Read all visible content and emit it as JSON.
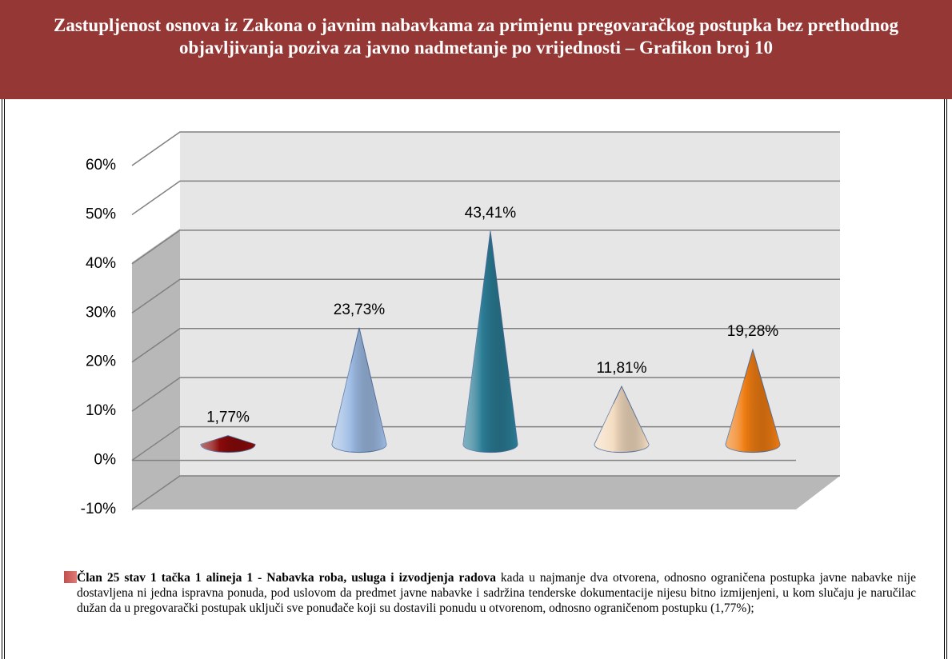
{
  "header": {
    "title": "Zastupljenost osnova iz Zakona o javnim nabavkama za primjenu pregovaračkog postupka bez prethodnog objavljivanja poziva za javno nadmetanje po vrijednosti – Grafikon broj 10"
  },
  "chart_data": {
    "type": "cone",
    "values": [
      1.77,
      23.73,
      43.41,
      11.81,
      19.28
    ],
    "value_labels": [
      "1,77%",
      "23,73%",
      "43,41%",
      "11,81%",
      "19,28%"
    ],
    "colors": [
      "#8b0a0a",
      "#9dbbe3",
      "#2b7d96",
      "#f4dcc0",
      "#f07d12"
    ],
    "ylim": [
      -10,
      60
    ],
    "yticks": [
      {
        "value": -10,
        "label": "-10%"
      },
      {
        "value": 0,
        "label": "0%"
      },
      {
        "value": 10,
        "label": "10%"
      },
      {
        "value": 20,
        "label": "20%"
      },
      {
        "value": 30,
        "label": "30%"
      },
      {
        "value": 40,
        "label": "40%"
      },
      {
        "value": 50,
        "label": "50%"
      },
      {
        "value": 60,
        "label": "60%"
      }
    ],
    "grid": true
  },
  "description": {
    "bold": "Član 25 stav 1 tačka 1 alineja 1 - Nabavka roba, usluga i izvodjenja  radova",
    "text": " kada u najmanje dva otvorena, odnosno ograničena postupka javne nabavke nije dostavljena ni jedna ispravna ponuda, pod uslovom da predmet javne nabavke i sadržina tenderske dokumentacije nijesu bitno izmijenjeni, u kom slučaju je naručilac dužan da u pregovarački postupak uključi sve ponuđače koji su dostavili ponudu u otvorenom, odnosno ograničenom postupku (1,77%);"
  }
}
